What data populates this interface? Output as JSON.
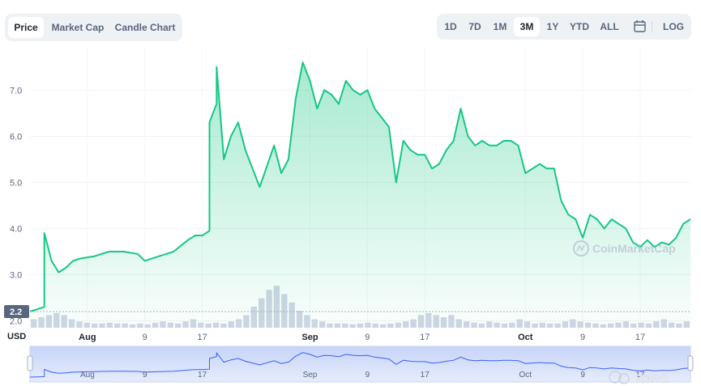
{
  "view_tabs": [
    {
      "label": "Price",
      "active": true
    },
    {
      "label": "Market Cap",
      "active": false
    },
    {
      "label": "Candle Chart",
      "active": false
    }
  ],
  "range_buttons": [
    {
      "label": "1D",
      "active": false
    },
    {
      "label": "7D",
      "active": false
    },
    {
      "label": "1M",
      "active": false
    },
    {
      "label": "3M",
      "active": true
    },
    {
      "label": "1Y",
      "active": false
    },
    {
      "label": "YTD",
      "active": false
    },
    {
      "label": "ALL",
      "active": false
    }
  ],
  "calendar_icon": "calendar-icon",
  "log_label": "LOG",
  "watermark": "CoinMarketCap",
  "corner_watermark": "R3PO",
  "colors": {
    "line": "#16c784",
    "accent_bg": "#eff2f5",
    "current_tag": "#58667e"
  },
  "chart_data": {
    "type": "area",
    "ylabel": "USD",
    "ylim": [
      1.85,
      7.9
    ],
    "y_ticks": [
      "2.0",
      "3.0",
      "4.0",
      "5.0",
      "6.0",
      "7.0"
    ],
    "current_price_label": "2.2",
    "x_tick_labels": [
      "Aug",
      "9",
      "17",
      "Sep",
      "9",
      "17",
      "Oct",
      "9",
      "17"
    ],
    "x_tick_dates": [
      "2021-08-01",
      "2021-08-09",
      "2021-08-17",
      "2021-09-01",
      "2021-09-09",
      "2021-09-17",
      "2021-10-01",
      "2021-10-09",
      "2021-10-17"
    ],
    "x_range": [
      "2021-07-24",
      "2021-10-24"
    ],
    "grid": true,
    "series": [
      {
        "x": [
          "2021-07-24",
          "2021-07-26",
          "2021-07-26",
          "2021-07-27",
          "2021-07-28",
          "2021-07-29",
          "2021-07-30",
          "2021-07-31",
          "2021-08-02",
          "2021-08-04",
          "2021-08-06",
          "2021-08-08",
          "2021-08-09",
          "2021-08-11",
          "2021-08-13",
          "2021-08-15",
          "2021-08-16",
          "2021-08-17",
          "2021-08-18",
          "2021-08-18",
          "2021-08-19",
          "2021-08-19",
          "2021-08-20",
          "2021-08-21",
          "2021-08-22",
          "2021-08-23",
          "2021-08-24",
          "2021-08-25",
          "2021-08-27",
          "2021-08-28",
          "2021-08-29",
          "2021-08-30",
          "2021-08-31",
          "2021-09-01",
          "2021-09-02",
          "2021-09-03",
          "2021-09-04",
          "2021-09-05",
          "2021-09-06",
          "2021-09-07",
          "2021-09-08",
          "2021-09-09",
          "2021-09-10",
          "2021-09-11",
          "2021-09-12",
          "2021-09-13",
          "2021-09-14",
          "2021-09-15",
          "2021-09-16",
          "2021-09-17",
          "2021-09-18",
          "2021-09-19",
          "2021-09-20",
          "2021-09-21",
          "2021-09-22",
          "2021-09-23",
          "2021-09-24",
          "2021-09-25",
          "2021-09-26",
          "2021-09-27",
          "2021-09-28",
          "2021-09-29",
          "2021-09-30",
          "2021-10-01",
          "2021-10-02",
          "2021-10-03",
          "2021-10-04",
          "2021-10-05",
          "2021-10-06",
          "2021-10-07",
          "2021-10-08",
          "2021-10-09",
          "2021-10-10",
          "2021-10-11",
          "2021-10-12",
          "2021-10-13",
          "2021-10-14",
          "2021-10-15",
          "2021-10-16",
          "2021-10-17",
          "2021-10-18",
          "2021-10-19",
          "2021-10-20",
          "2021-10-21",
          "2021-10-22",
          "2021-10-23",
          "2021-10-24"
        ],
        "y": [
          2.2,
          2.3,
          3.9,
          3.3,
          3.05,
          3.15,
          3.3,
          3.35,
          3.4,
          3.5,
          3.5,
          3.45,
          3.3,
          3.4,
          3.5,
          3.75,
          3.85,
          3.85,
          3.95,
          6.3,
          6.7,
          7.5,
          5.5,
          6.0,
          6.3,
          5.7,
          5.3,
          4.9,
          5.8,
          5.2,
          5.5,
          6.8,
          7.6,
          7.2,
          6.6,
          7.0,
          6.9,
          6.7,
          7.2,
          7.0,
          6.9,
          7.0,
          6.6,
          6.4,
          6.2,
          5.0,
          5.9,
          5.7,
          5.6,
          5.6,
          5.3,
          5.4,
          5.7,
          5.9,
          6.6,
          6.0,
          5.8,
          5.9,
          5.8,
          5.8,
          5.9,
          5.9,
          5.8,
          5.2,
          5.3,
          5.4,
          5.3,
          5.3,
          4.6,
          4.3,
          4.2,
          3.8,
          4.3,
          4.2,
          4.0,
          4.2,
          4.1,
          4.0,
          3.7,
          3.6,
          3.75,
          3.6,
          3.7,
          3.65,
          3.8,
          4.1,
          4.2
        ]
      }
    ],
    "volume_relative": [
      0.2,
      0.25,
      0.3,
      0.35,
      0.3,
      0.2,
      0.15,
      0.12,
      0.1,
      0.1,
      0.12,
      0.1,
      0.1,
      0.08,
      0.1,
      0.08,
      0.12,
      0.15,
      0.12,
      0.1,
      0.15,
      0.2,
      0.12,
      0.1,
      0.12,
      0.1,
      0.15,
      0.2,
      0.3,
      0.5,
      0.7,
      0.9,
      1.0,
      0.8,
      0.6,
      0.4,
      0.3,
      0.2,
      0.15,
      0.1,
      0.1,
      0.1,
      0.08,
      0.1,
      0.12,
      0.1,
      0.08,
      0.1,
      0.12,
      0.15,
      0.2,
      0.3,
      0.35,
      0.3,
      0.25,
      0.3,
      0.2,
      0.15,
      0.12,
      0.1,
      0.15,
      0.12,
      0.1,
      0.12,
      0.2,
      0.15,
      0.1,
      0.12,
      0.1,
      0.1,
      0.15,
      0.2,
      0.15,
      0.12,
      0.1,
      0.08,
      0.1,
      0.12,
      0.15,
      0.1,
      0.12,
      0.1,
      0.15,
      0.2,
      0.12,
      0.1,
      0.15
    ]
  }
}
